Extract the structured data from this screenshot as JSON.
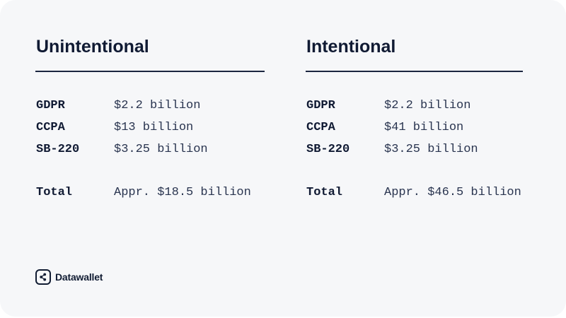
{
  "columns": [
    {
      "heading": "Unintentional",
      "rows": [
        {
          "label": "GDPR",
          "value": "$2.2 billion"
        },
        {
          "label": "CCPA",
          "value": "$13 billion"
        },
        {
          "label": "SB-220",
          "value": "$3.25 billion"
        }
      ],
      "total": {
        "label": "Total",
        "value": "Appr. $18.5 billion"
      }
    },
    {
      "heading": "Intentional",
      "rows": [
        {
          "label": "GDPR",
          "value": "$2.2 billion"
        },
        {
          "label": "CCPA",
          "value": "$41 billion"
        },
        {
          "label": "SB-220",
          "value": "$3.25 billion"
        }
      ],
      "total": {
        "label": "Total",
        "value": "Appr. $46.5 billion"
      }
    }
  ],
  "brand": {
    "name": "Datawallet",
    "icon": "datawallet-logo-icon"
  },
  "colors": {
    "background": "#f6f7f9",
    "text": "#111c33"
  }
}
